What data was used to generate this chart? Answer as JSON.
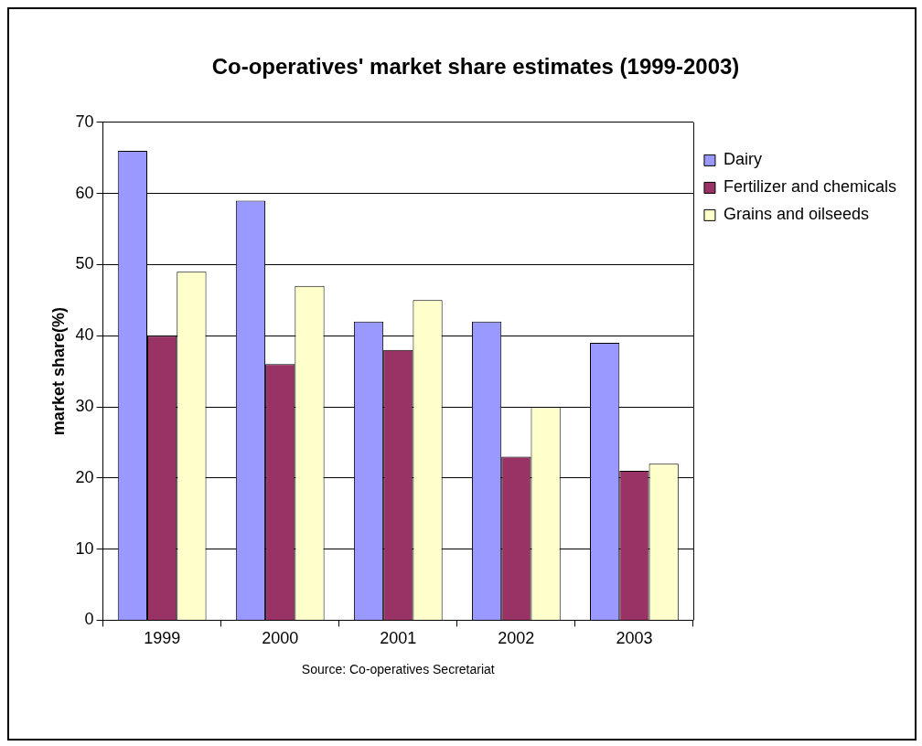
{
  "chart_data": {
    "type": "bar",
    "title": "Co-operatives' market share estimates (1999-2003)",
    "ylabel": "market share(%)",
    "categories": [
      "1999",
      "2000",
      "2001",
      "2002",
      "2003"
    ],
    "series": [
      {
        "name": "Dairy",
        "color": "#9999ff",
        "values": [
          66,
          59,
          42,
          42,
          39
        ]
      },
      {
        "name": "Fertilizer and chemicals",
        "color": "#993366",
        "values": [
          40,
          36,
          38,
          23,
          21
        ]
      },
      {
        "name": "Grains and oilseeds",
        "color": "#ffffcc",
        "values": [
          49,
          47,
          45,
          30,
          22
        ]
      }
    ],
    "ylim": [
      0,
      70
    ],
    "yticks": [
      0,
      10,
      20,
      30,
      40,
      50,
      60,
      70
    ],
    "grid": "y",
    "legend": "right",
    "annotations": [
      "Source: Co-operatives Secretariat"
    ]
  }
}
